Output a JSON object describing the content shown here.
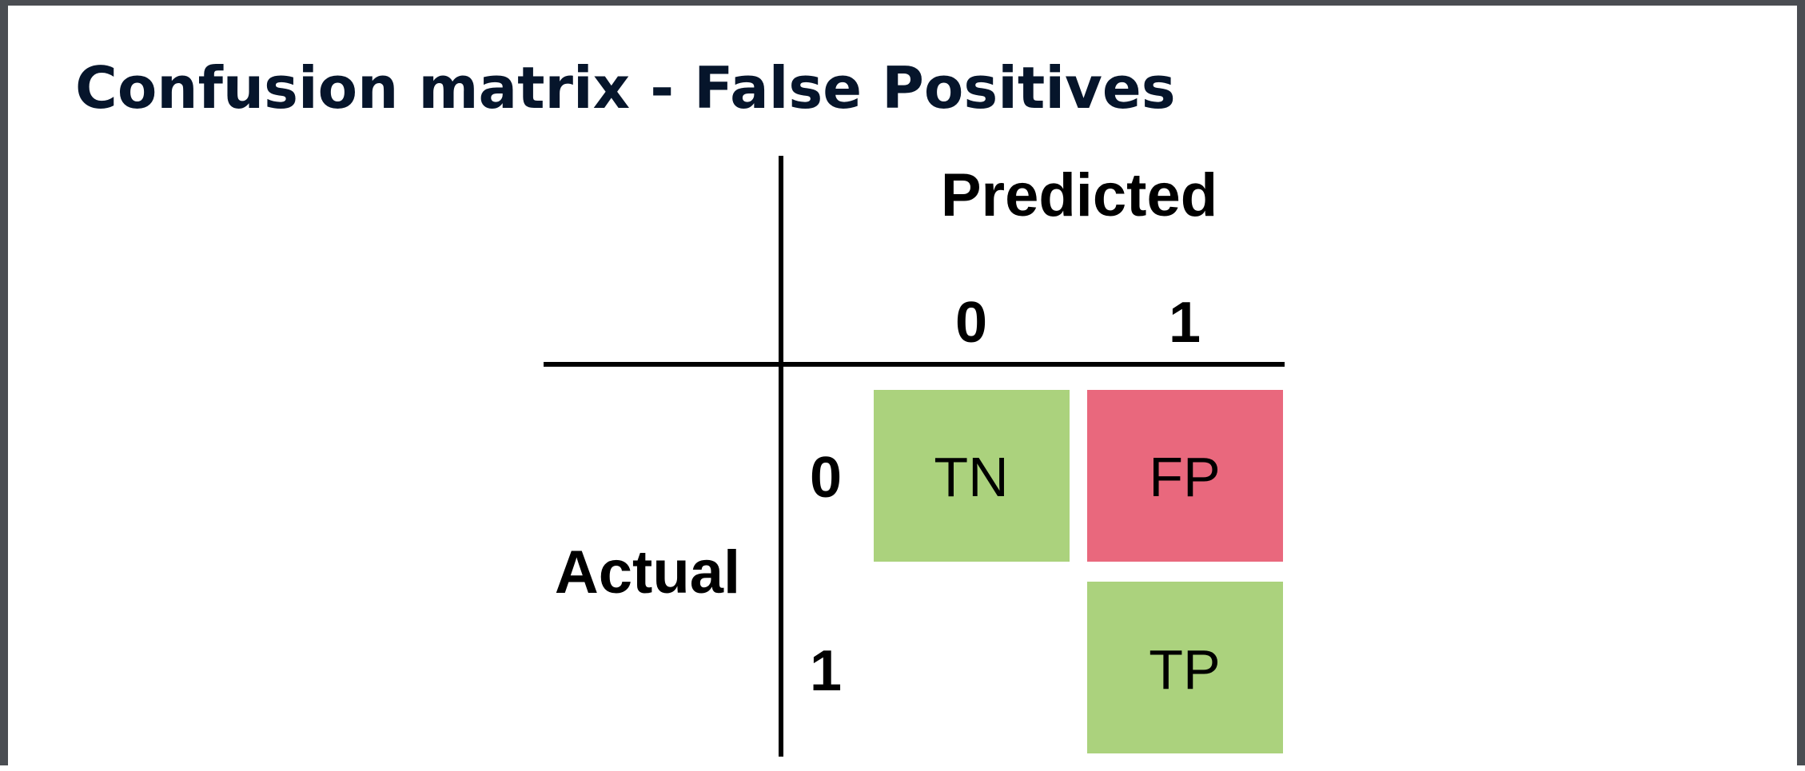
{
  "title": "Confusion matrix - False Positives",
  "diagram": {
    "predicted_label": "Predicted",
    "actual_label": "Actual",
    "predicted_classes": [
      "0",
      "1"
    ],
    "actual_classes": [
      "0",
      "1"
    ],
    "cells": [
      {
        "row": 0,
        "col": 0,
        "label": "TN",
        "color": "#abd27d"
      },
      {
        "row": 0,
        "col": 1,
        "label": "FP",
        "color": "#e9687d"
      },
      {
        "row": 1,
        "col": 1,
        "label": "TP",
        "color": "#abd27d"
      }
    ]
  }
}
